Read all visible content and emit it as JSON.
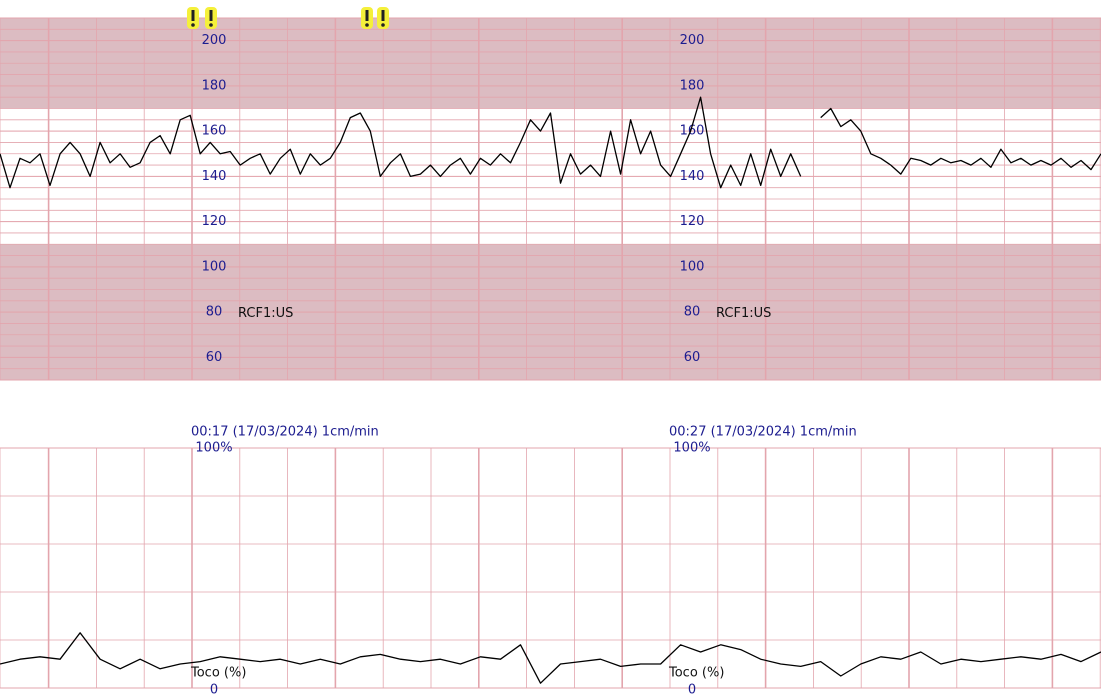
{
  "chart_data": [
    {
      "type": "line",
      "label": "RCF1:US",
      "series": [
        {
          "color": "#000000",
          "values": [
            150,
            135,
            148,
            146,
            150,
            136,
            150,
            155,
            150,
            140,
            155,
            146,
            150,
            144,
            146,
            155,
            158,
            150,
            165,
            167,
            150,
            155,
            150,
            151,
            145,
            148,
            150,
            141,
            148,
            152,
            141,
            150,
            145,
            148,
            155,
            166,
            168,
            160,
            140,
            146,
            150,
            140,
            141,
            145,
            140,
            145,
            148,
            141,
            148,
            145,
            150,
            146,
            155,
            165,
            160,
            168,
            137,
            150,
            141,
            145,
            140,
            160,
            141,
            165,
            150,
            160,
            145,
            140,
            150,
            160,
            175,
            150,
            135,
            145,
            136,
            150,
            136,
            152,
            140,
            150,
            140,
            null,
            166,
            170,
            162,
            165,
            160,
            150,
            148,
            145,
            141,
            148,
            147,
            145,
            148,
            146,
            147,
            145,
            148,
            144,
            152,
            146,
            148,
            145,
            147,
            145,
            148,
            144,
            147,
            143,
            150
          ]
        }
      ],
      "ylim": [
        50,
        210
      ],
      "yticks": [
        60,
        80,
        100,
        120,
        140,
        160,
        180,
        200
      ],
      "grid_step": 5,
      "shaded_ranges": [
        [
          170,
          210
        ],
        [
          50,
          110
        ]
      ],
      "band_color": "#dcbcc2",
      "grid_color": "#e3a5ad"
    },
    {
      "type": "line",
      "ylabel": "Toco (%)",
      "annotations": [
        "00:17 (17/03/2024) 1cm/min",
        "00:27 (17/03/2024) 1cm/min"
      ],
      "series": [
        {
          "color": "#000000",
          "values": [
            10,
            12,
            13,
            12,
            23,
            12,
            8,
            12,
            8,
            10,
            11,
            13,
            12,
            11,
            12,
            10,
            12,
            10,
            13,
            14,
            12,
            11,
            12,
            10,
            13,
            12,
            18,
            2,
            10,
            11,
            12,
            9,
            10,
            10,
            18,
            15,
            18,
            16,
            12,
            10,
            9,
            11,
            5,
            10,
            13,
            12,
            15,
            10,
            12,
            11,
            12,
            13,
            12,
            14,
            11,
            15
          ]
        }
      ],
      "ylim": [
        0,
        100
      ],
      "yticks": [
        0,
        {
          "value": 100,
          "label": "100%"
        }
      ],
      "grid_step": 20,
      "grid_color": "#e3a5ad"
    }
  ]
}
